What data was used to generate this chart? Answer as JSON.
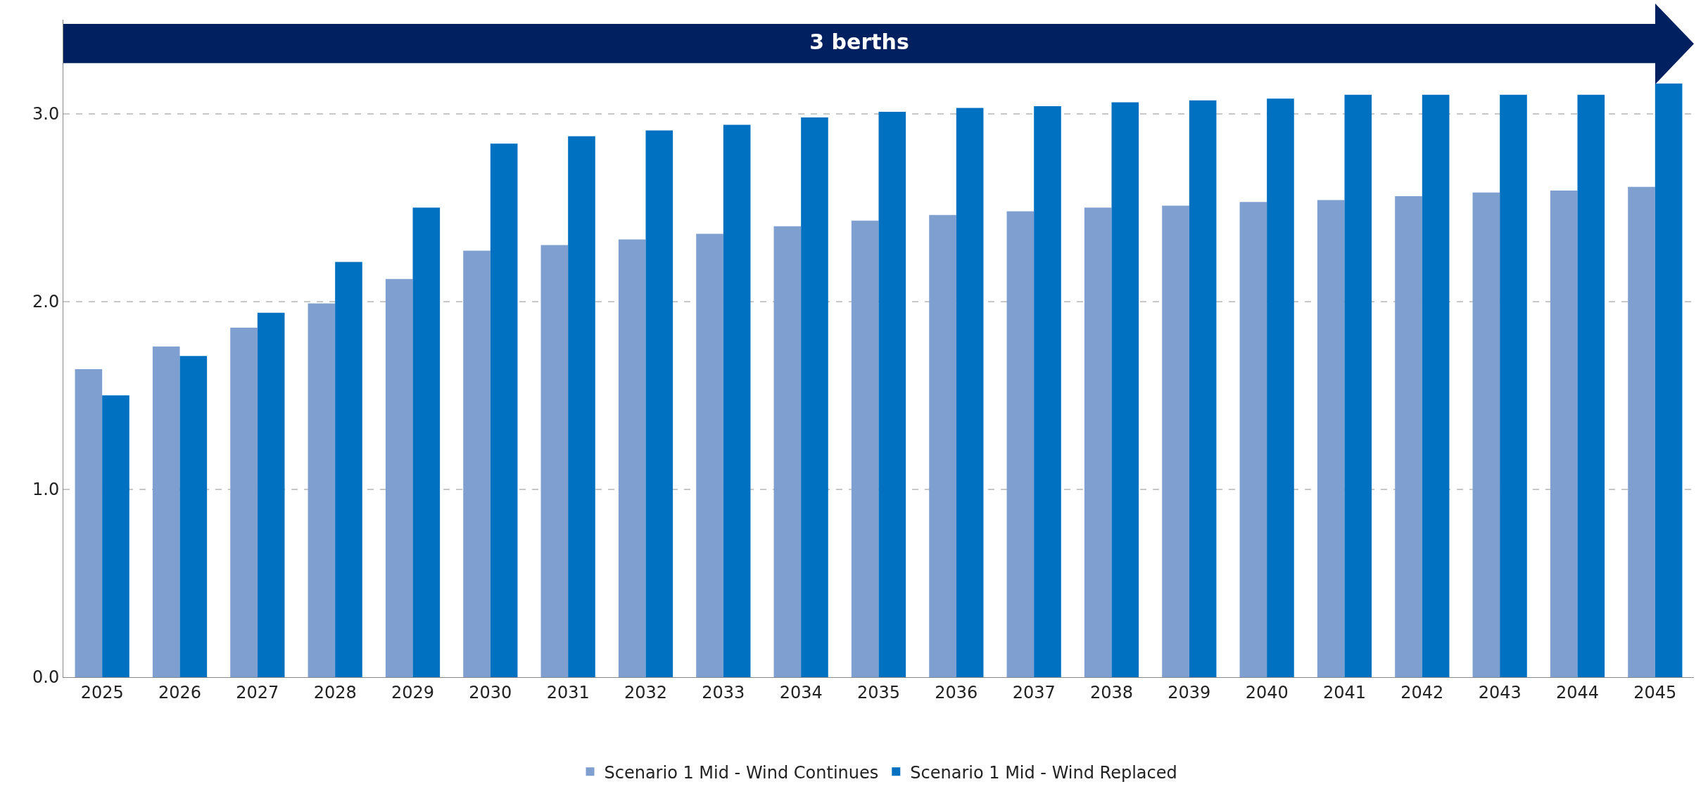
{
  "chart_data": {
    "type": "bar",
    "annotations": [
      "3 berths"
    ],
    "categories": [
      "2025",
      "2026",
      "2027",
      "2028",
      "2029",
      "2030",
      "2031",
      "2032",
      "2033",
      "2034",
      "2035",
      "2036",
      "2037",
      "2038",
      "2039",
      "2040",
      "2041",
      "2042",
      "2043",
      "2044",
      "2045"
    ],
    "series": [
      {
        "name": "Scenario 1 Mid - Wind Continues",
        "color": "#7f9fd0",
        "values": [
          1.64,
          1.76,
          1.86,
          1.99,
          2.12,
          2.27,
          2.3,
          2.33,
          2.36,
          2.4,
          2.43,
          2.46,
          2.48,
          2.5,
          2.51,
          2.53,
          2.54,
          2.56,
          2.58,
          2.59,
          2.61
        ]
      },
      {
        "name": "Scenario 1 Mid - Wind Replaced",
        "color": "#0070c0",
        "values": [
          1.5,
          1.71,
          1.94,
          2.21,
          2.5,
          2.84,
          2.88,
          2.91,
          2.94,
          2.98,
          3.01,
          3.03,
          3.04,
          3.06,
          3.07,
          3.08,
          3.1,
          3.1,
          3.1,
          3.1,
          3.16
        ]
      }
    ],
    "ylim": [
      0,
      3.5
    ],
    "yticks": [
      {
        "value": 0,
        "label": "0.0"
      },
      {
        "value": 1,
        "label": "1.0"
      },
      {
        "value": 2,
        "label": "2.0"
      },
      {
        "value": 3,
        "label": "3.0"
      }
    ],
    "grid": "y",
    "legend": "bottom"
  }
}
